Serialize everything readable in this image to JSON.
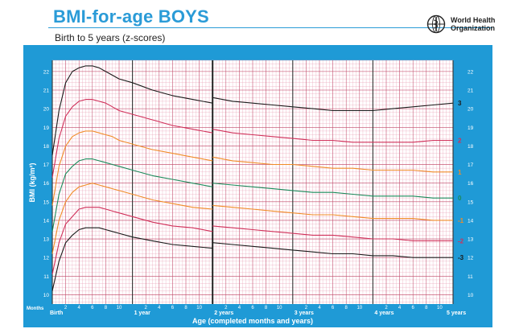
{
  "header": {
    "title": "BMI-for-age BOYS",
    "subtitle": "Birth to 5 years (z-scores)",
    "org_line1": "World Health",
    "org_line2": "Organization"
  },
  "colors": {
    "frame": "#1f9ad6",
    "grid": "#e9a4b8",
    "z3": "#1a1a1a",
    "z2": "#d0305a",
    "z1": "#f08c28",
    "z0": "#1a8a5a"
  },
  "chart_data": {
    "type": "line",
    "title": "BMI-for-age BOYS",
    "subtitle": "Birth to 5 years (z-scores)",
    "xlabel": "Age (completed months and years)",
    "ylabel": "BMI (kg/m²)",
    "xlim": [
      0,
      60
    ],
    "ylim": [
      9.5,
      22.6
    ],
    "grid": true,
    "y_ticks": [
      10,
      11,
      12,
      13,
      14,
      15,
      16,
      17,
      18,
      19,
      20,
      21,
      22
    ],
    "x_row_label": "Months",
    "x_ticks": [
      {
        "x": 0,
        "label": "Birth",
        "major": true
      },
      {
        "x": 2,
        "label": "2"
      },
      {
        "x": 4,
        "label": "4"
      },
      {
        "x": 6,
        "label": "6"
      },
      {
        "x": 8,
        "label": "8"
      },
      {
        "x": 10,
        "label": "10"
      },
      {
        "x": 12,
        "label": "1 year",
        "major": true
      },
      {
        "x": 14,
        "label": "2"
      },
      {
        "x": 16,
        "label": "4"
      },
      {
        "x": 18,
        "label": "6"
      },
      {
        "x": 20,
        "label": "8"
      },
      {
        "x": 22,
        "label": "10"
      },
      {
        "x": 24,
        "label": "2 years",
        "major": true
      },
      {
        "x": 26,
        "label": "2"
      },
      {
        "x": 28,
        "label": "4"
      },
      {
        "x": 30,
        "label": "6"
      },
      {
        "x": 32,
        "label": "8"
      },
      {
        "x": 34,
        "label": "10"
      },
      {
        "x": 36,
        "label": "3 years",
        "major": true
      },
      {
        "x": 38,
        "label": "2"
      },
      {
        "x": 40,
        "label": "4"
      },
      {
        "x": 42,
        "label": "6"
      },
      {
        "x": 44,
        "label": "8"
      },
      {
        "x": 46,
        "label": "10"
      },
      {
        "x": 48,
        "label": "4 years",
        "major": true
      },
      {
        "x": 50,
        "label": "2"
      },
      {
        "x": 52,
        "label": "4"
      },
      {
        "x": 54,
        "label": "6"
      },
      {
        "x": 56,
        "label": "8"
      },
      {
        "x": 58,
        "label": "10"
      },
      {
        "x": 60,
        "label": "5 years",
        "major": true
      }
    ],
    "series": [
      {
        "name": "3",
        "color": "#1a1a1a",
        "x": [
          0,
          1,
          2,
          3,
          4,
          5,
          6,
          7,
          8,
          9,
          10,
          12,
          15,
          18,
          21,
          24,
          24,
          27,
          30,
          33,
          36,
          39,
          42,
          45,
          48,
          51,
          54,
          57,
          60
        ],
        "y": [
          17.5,
          19.9,
          21.4,
          22.0,
          22.2,
          22.3,
          22.3,
          22.2,
          22.0,
          21.8,
          21.6,
          21.4,
          21.0,
          20.7,
          20.5,
          20.3,
          20.6,
          20.4,
          20.3,
          20.2,
          20.1,
          20.0,
          19.9,
          19.9,
          19.9,
          20.0,
          20.1,
          20.2,
          20.3
        ]
      },
      {
        "name": "2",
        "color": "#d0305a",
        "x": [
          0,
          1,
          2,
          3,
          4,
          5,
          6,
          7,
          8,
          9,
          10,
          12,
          15,
          18,
          21,
          24,
          24,
          27,
          30,
          33,
          36,
          39,
          42,
          45,
          48,
          51,
          54,
          57,
          60
        ],
        "y": [
          16.3,
          18.4,
          19.6,
          20.1,
          20.4,
          20.5,
          20.5,
          20.4,
          20.3,
          20.1,
          19.9,
          19.7,
          19.4,
          19.1,
          18.9,
          18.7,
          18.9,
          18.7,
          18.6,
          18.5,
          18.4,
          18.3,
          18.3,
          18.2,
          18.2,
          18.2,
          18.2,
          18.3,
          18.3
        ]
      },
      {
        "name": "1",
        "color": "#f08c28",
        "x": [
          0,
          1,
          2,
          3,
          4,
          5,
          6,
          7,
          8,
          9,
          10,
          12,
          15,
          18,
          21,
          24,
          24,
          27,
          30,
          33,
          36,
          39,
          42,
          45,
          48,
          51,
          54,
          57,
          60
        ],
        "y": [
          14.8,
          16.9,
          18.0,
          18.5,
          18.7,
          18.8,
          18.8,
          18.7,
          18.6,
          18.5,
          18.3,
          18.1,
          17.8,
          17.6,
          17.4,
          17.2,
          17.4,
          17.2,
          17.1,
          17.0,
          17.0,
          16.9,
          16.8,
          16.8,
          16.7,
          16.7,
          16.7,
          16.6,
          16.6
        ]
      },
      {
        "name": "0",
        "color": "#1a8a5a",
        "x": [
          0,
          1,
          2,
          3,
          4,
          5,
          6,
          7,
          8,
          9,
          10,
          12,
          15,
          18,
          21,
          24,
          24,
          27,
          30,
          33,
          36,
          39,
          42,
          45,
          48,
          51,
          54,
          57,
          60
        ],
        "y": [
          13.4,
          15.4,
          16.5,
          16.9,
          17.2,
          17.3,
          17.3,
          17.2,
          17.1,
          17.0,
          16.9,
          16.7,
          16.4,
          16.2,
          16.0,
          15.8,
          16.0,
          15.9,
          15.8,
          15.7,
          15.6,
          15.5,
          15.5,
          15.4,
          15.3,
          15.3,
          15.3,
          15.2,
          15.2
        ]
      },
      {
        "name": "-1",
        "color": "#f08c28",
        "x": [
          0,
          1,
          2,
          3,
          4,
          5,
          6,
          7,
          8,
          9,
          10,
          12,
          15,
          18,
          21,
          24,
          24,
          27,
          30,
          33,
          36,
          39,
          42,
          45,
          48,
          51,
          54,
          57,
          60
        ],
        "y": [
          12.2,
          14.0,
          15.0,
          15.5,
          15.8,
          15.9,
          16.0,
          15.9,
          15.8,
          15.7,
          15.6,
          15.4,
          15.1,
          14.9,
          14.7,
          14.6,
          14.8,
          14.7,
          14.6,
          14.5,
          14.4,
          14.3,
          14.3,
          14.2,
          14.1,
          14.1,
          14.1,
          14.0,
          14.0
        ]
      },
      {
        "name": "-2",
        "color": "#d0305a",
        "x": [
          0,
          1,
          2,
          3,
          4,
          5,
          6,
          7,
          8,
          9,
          10,
          12,
          15,
          18,
          21,
          24,
          24,
          27,
          30,
          33,
          36,
          39,
          42,
          45,
          48,
          51,
          54,
          57,
          60
        ],
        "y": [
          11.1,
          12.8,
          13.8,
          14.2,
          14.6,
          14.7,
          14.7,
          14.7,
          14.6,
          14.5,
          14.4,
          14.2,
          13.9,
          13.7,
          13.6,
          13.4,
          13.7,
          13.6,
          13.5,
          13.4,
          13.3,
          13.2,
          13.2,
          13.1,
          13.0,
          13.0,
          12.9,
          12.9,
          12.9
        ]
      },
      {
        "name": "-3",
        "color": "#1a1a1a",
        "x": [
          0,
          1,
          2,
          3,
          4,
          5,
          6,
          7,
          8,
          9,
          10,
          12,
          15,
          18,
          21,
          24,
          24,
          27,
          30,
          33,
          36,
          39,
          42,
          45,
          48,
          51,
          54,
          57,
          60
        ],
        "y": [
          10.2,
          11.8,
          12.8,
          13.2,
          13.5,
          13.6,
          13.6,
          13.6,
          13.5,
          13.4,
          13.3,
          13.1,
          12.9,
          12.7,
          12.6,
          12.5,
          12.8,
          12.7,
          12.6,
          12.5,
          12.4,
          12.3,
          12.2,
          12.2,
          12.1,
          12.1,
          12.0,
          12.0,
          12.0
        ]
      }
    ]
  }
}
